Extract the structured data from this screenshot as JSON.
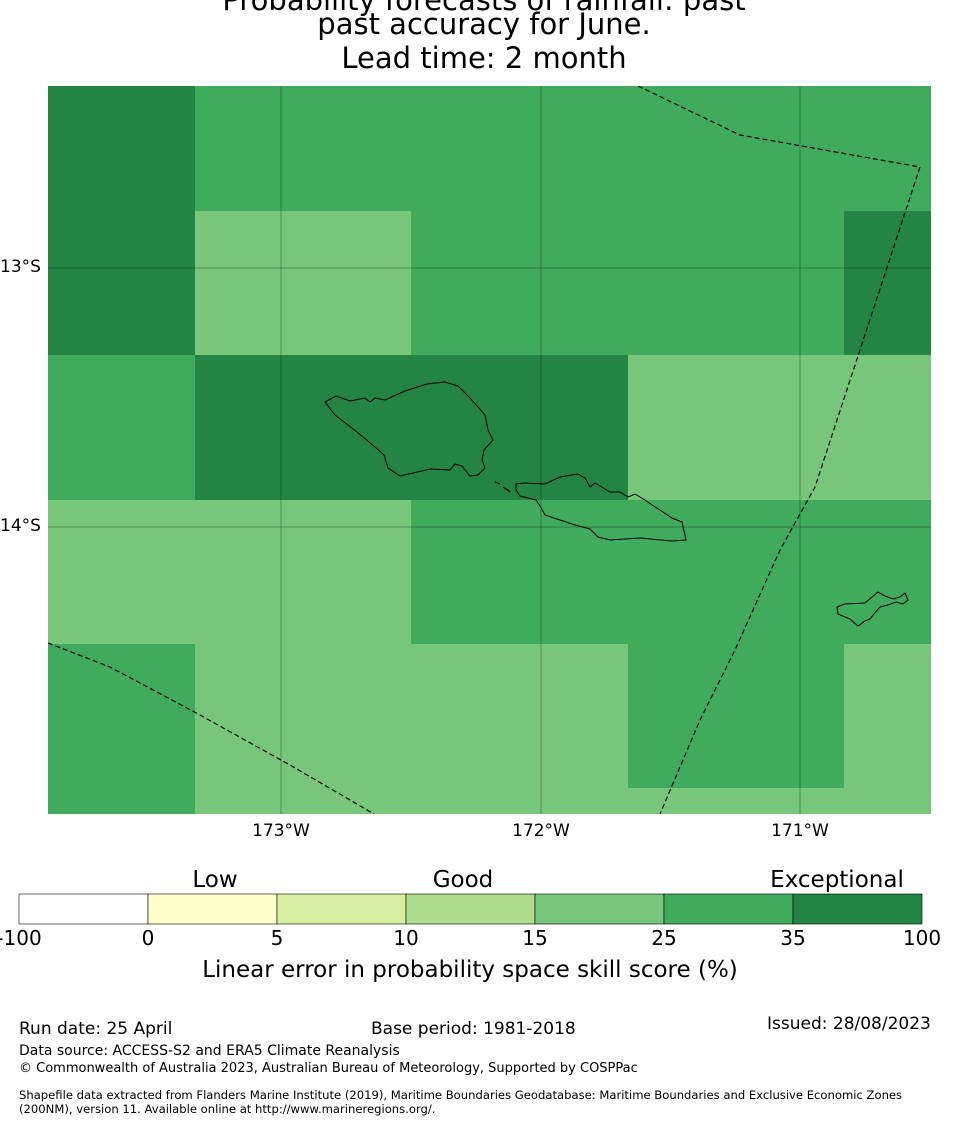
{
  "title": {
    "line1": "Probability forecasts of rainfall: past",
    "line2": "past accuracy for June.",
    "line3": "Lead time: 2 month"
  },
  "map": {
    "lat_labels": [
      "13°S",
      "14°S"
    ],
    "lon_labels": [
      "173°W",
      "172°W",
      "171°W"
    ],
    "skill_colors": {
      "c15_25": "#78c679",
      "c25_35": "#41ab5d",
      "c35_100": "#238443"
    },
    "grid": [
      [
        "c35_100",
        "c25_35",
        "c25_35",
        "c25_35",
        "c25_35",
        "c25_35"
      ],
      [
        "c35_100",
        "c15_25",
        "c25_35",
        "c25_35",
        "c25_35",
        "c35_100"
      ],
      [
        "c25_35",
        "c35_100",
        "c35_100",
        "c15_25",
        "c15_25",
        "c15_25"
      ],
      [
        "c15_25",
        "c15_25",
        "c25_35",
        "c25_35",
        "c25_35",
        "c25_35"
      ],
      [
        "c25_35",
        "c15_25",
        "c15_25",
        "c25_35",
        "c25_35",
        "c15_25"
      ],
      [
        "c25_35",
        "c15_25",
        "c15_25",
        "c15_25",
        "c15_25",
        "c15_25"
      ]
    ],
    "features": [
      "Savai'i",
      "Upolu",
      "Tutuila",
      "Maritime boundary"
    ]
  },
  "colorbar": {
    "categories": [
      "Low",
      "Good",
      "Exceptional"
    ],
    "ticks": [
      "-100",
      "0",
      "5",
      "10",
      "15",
      "25",
      "35",
      "100"
    ],
    "colors": [
      "#ffffff",
      "#ffffcc",
      "#d9f0a3",
      "#addd8e",
      "#78c679",
      "#41ab5d",
      "#238443"
    ],
    "title": "Linear error in probability space skill score (%)"
  },
  "footer": {
    "run_date": "Run date: 25 April",
    "base_period": "Base period: 1981-2018",
    "issued": "Issued: 28/08/2023",
    "data_source": "Data source: ACCESS-S2 and ERA5 Climate Reanalysis",
    "copyright": "© Commonwealth of Australia 2023, Australian Bureau of Meteorology, Supported by COSPPac",
    "shapefile_line1": "Shapefile data extracted from Flanders Marine Institute (2019), Maritime Boundaries Geodatabase: Maritime Boundaries and Exclusive Economic Zones",
    "shapefile_line2": "(200NM), version 11. Available online at http://www.marineregions.org/."
  }
}
